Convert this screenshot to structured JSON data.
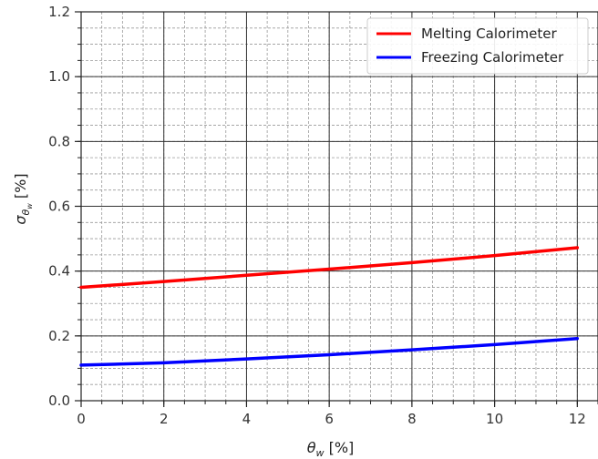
{
  "chart_data": {
    "type": "line",
    "title": "",
    "xlabel_symbol": "θ",
    "xlabel_sub": "w",
    "xlabel_unit": " [%]",
    "ylabel_symbol": "σ",
    "ylabel_sub": "θ",
    "ylabel_subsub": "w",
    "ylabel_unit": " [%]",
    "xlim": [
      0,
      12.5
    ],
    "ylim": [
      0,
      1.2
    ],
    "xticks": [
      0,
      2,
      4,
      6,
      8,
      10,
      12
    ],
    "yticks": [
      0.0,
      0.2,
      0.4,
      0.6,
      0.8,
      1.0,
      1.2
    ],
    "ytick_labels": [
      "0.0",
      "0.2",
      "0.4",
      "0.6",
      "0.8",
      "1.0",
      "1.2"
    ],
    "grid": "major and minor",
    "legend_position": "top-right",
    "x": [
      0,
      2,
      4,
      6,
      8,
      10,
      12
    ],
    "series": [
      {
        "name": "Melting Calorimeter",
        "color": "#ff0000",
        "values": [
          0.35,
          0.368,
          0.387,
          0.406,
          0.426,
          0.448,
          0.472
        ]
      },
      {
        "name": "Freezing Calorimeter",
        "color": "#0000ff",
        "values": [
          0.11,
          0.117,
          0.129,
          0.142,
          0.157,
          0.173,
          0.192
        ]
      }
    ]
  }
}
